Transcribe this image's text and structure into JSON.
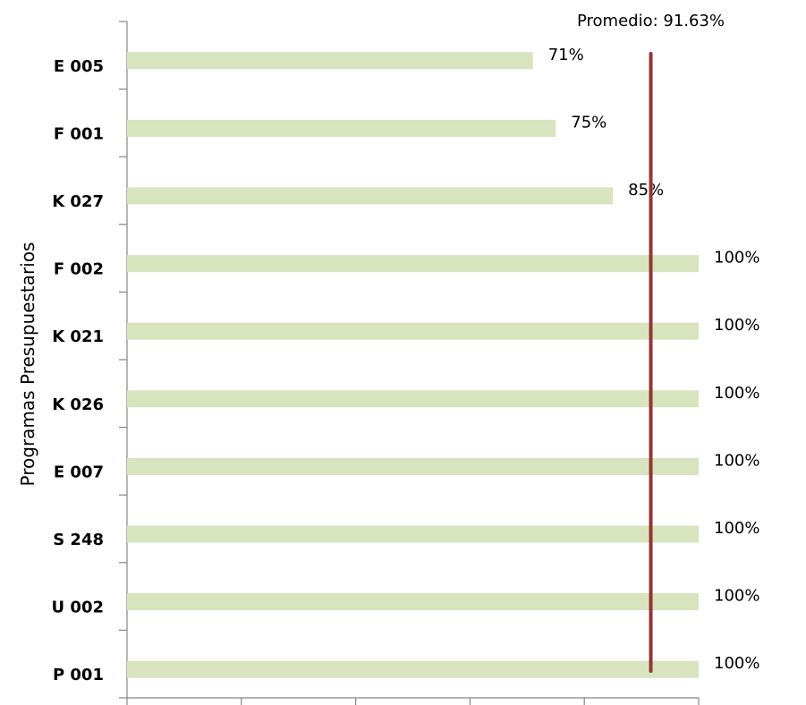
{
  "chart_data": {
    "type": "bar",
    "orientation": "horizontal",
    "categories": [
      "E 005",
      "F 001",
      "K 027",
      "F 002",
      "K 021",
      "K 026",
      "E 007",
      "S 248",
      "U 002",
      "P 001"
    ],
    "values": [
      71,
      75,
      85,
      100,
      100,
      100,
      100,
      100,
      100,
      100
    ],
    "data_labels": [
      "71%",
      "75%",
      "85%",
      "100%",
      "100%",
      "100%",
      "100%",
      "100%",
      "100%",
      "100%"
    ],
    "ylabel": "Programas Presupuestarios",
    "xlim": [
      0,
      100
    ],
    "x_tick_count": 5,
    "grid": false,
    "bar_color": "#d7e4bd",
    "reference_line": {
      "value": 91.63,
      "label": "Promedio: 91.63%",
      "color": "#943634"
    }
  }
}
